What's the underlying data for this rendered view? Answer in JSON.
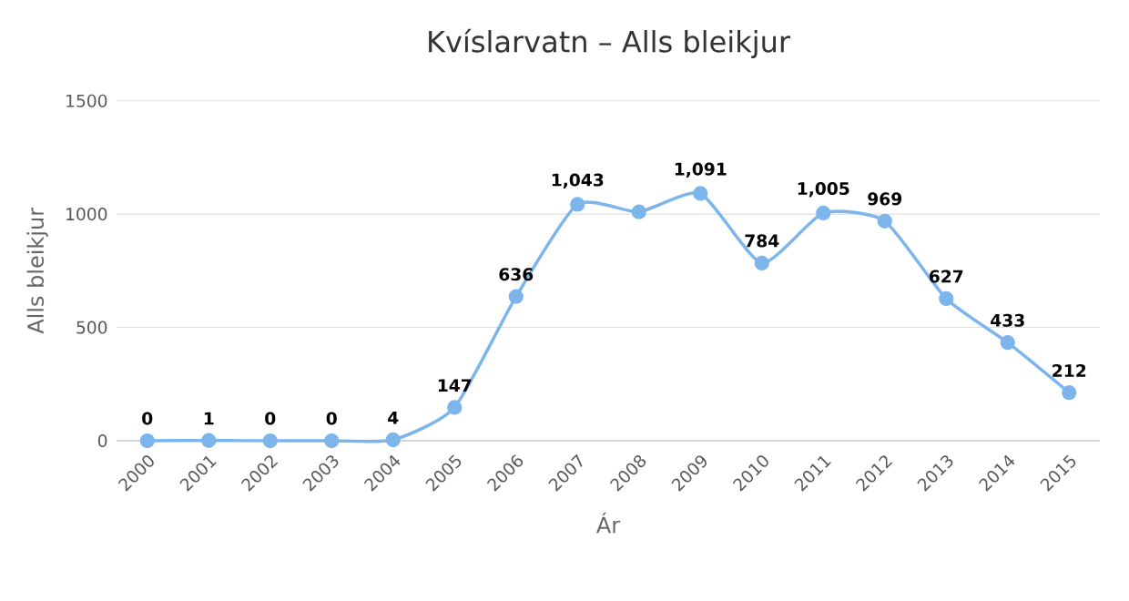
{
  "chart_data": {
    "type": "line",
    "title": "Kvíslarvatn – Alls bleikjur",
    "xlabel": "Ár",
    "ylabel": "Alls bleikjur",
    "categories": [
      "2000",
      "2001",
      "2002",
      "2003",
      "2004",
      "2005",
      "2006",
      "2007",
      "2008",
      "2009",
      "2010",
      "2011",
      "2012",
      "2013",
      "2014",
      "2015"
    ],
    "series": [
      {
        "color": "#7cb5ec",
        "values": [
          0,
          1,
          0,
          0,
          4,
          147,
          636,
          1043,
          1010,
          1091,
          784,
          1005,
          969,
          627,
          433,
          212
        ],
        "value_labels": [
          "0",
          "1",
          "0",
          "0",
          "4",
          "147",
          "636",
          "1,043",
          null,
          "1,091",
          "784",
          "1,005",
          "969",
          "627",
          "433",
          "212"
        ]
      }
    ],
    "ylim": [
      0,
      1500
    ],
    "yticks": [
      0,
      500,
      1000,
      1500
    ],
    "grid": "y",
    "marker": "circle",
    "line_style": "solid"
  }
}
